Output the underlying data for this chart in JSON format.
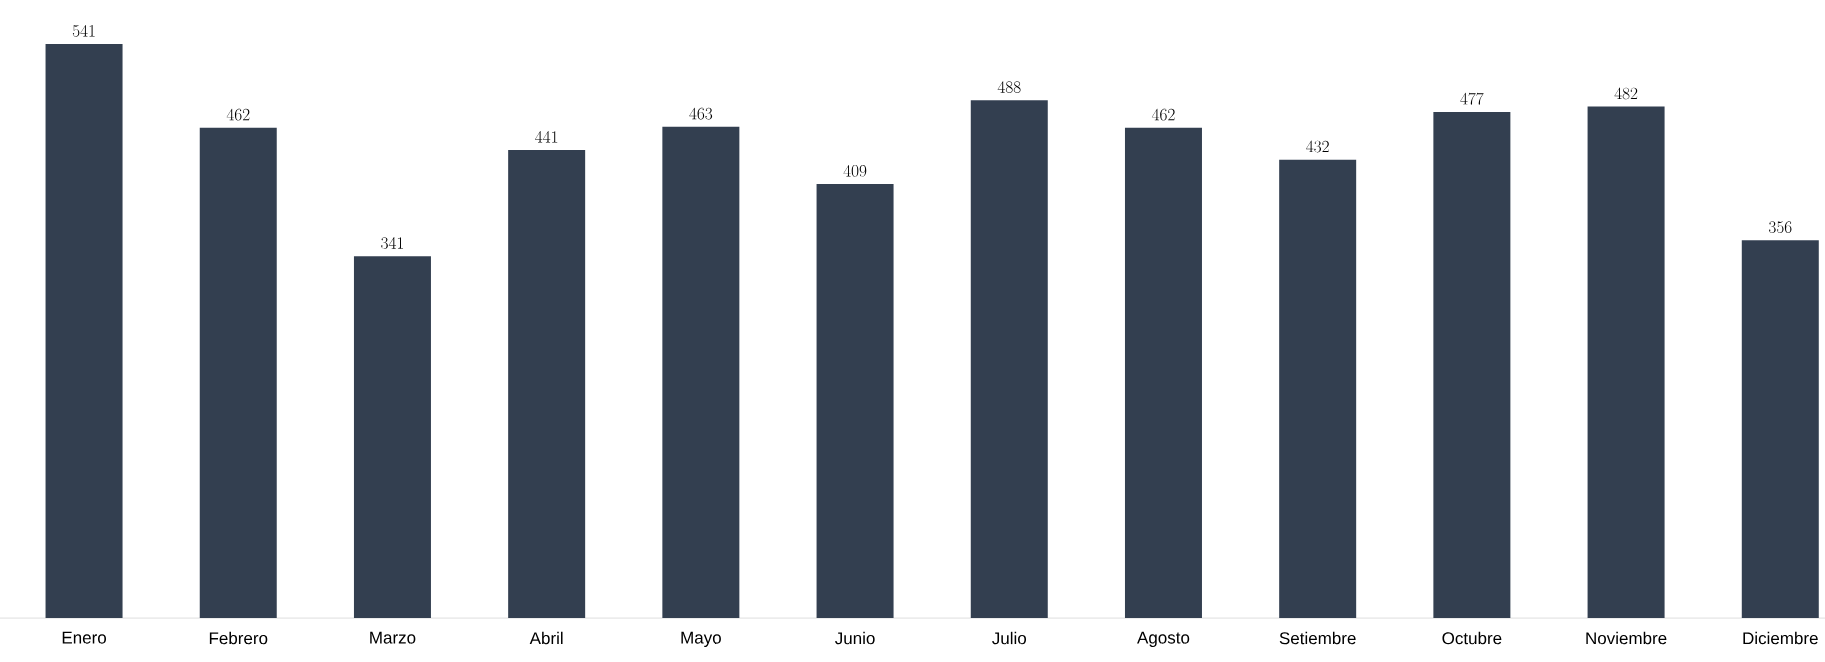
{
  "chart_data": {
    "type": "bar",
    "categories": [
      "Enero",
      "Febrero",
      "Marzo",
      "Abril",
      "Mayo",
      "Junio",
      "Julio",
      "Agosto",
      "Setiembre",
      "Octubre",
      "Noviembre",
      "Diciembre"
    ],
    "values": [
      541,
      462,
      341,
      441,
      463,
      409,
      488,
      462,
      432,
      477,
      482,
      356
    ],
    "color": "#333f50",
    "data_labels": true
  }
}
